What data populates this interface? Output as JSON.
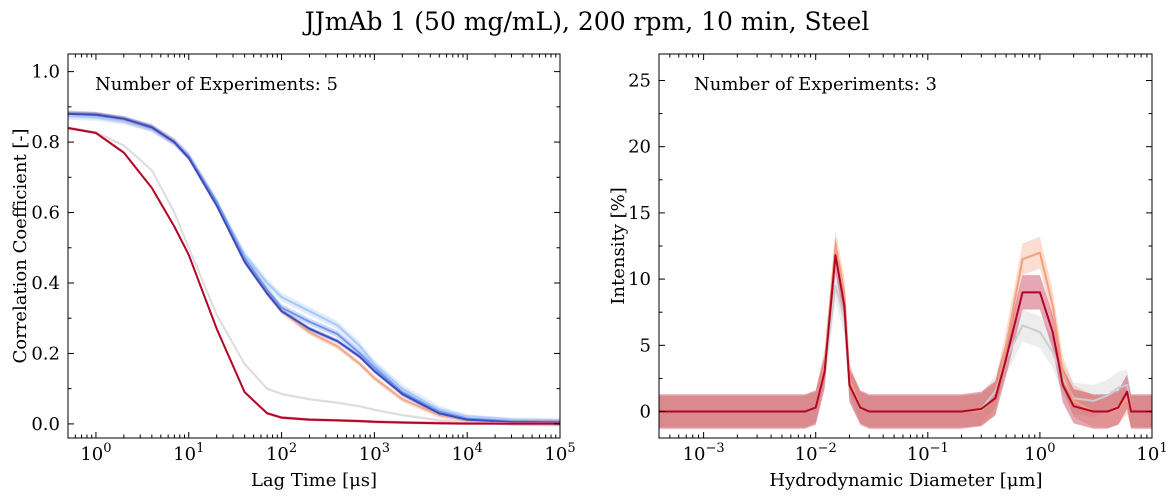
{
  "figure": {
    "title": "JJmAb 1 (50 mg/mL), 200 rpm, 10 min, Steel"
  },
  "chart_data": [
    {
      "type": "line",
      "xscale": "log",
      "xlim": [
        0.5,
        100000
      ],
      "ylim": [
        -0.04,
        1.05
      ],
      "xlabel": "Lag Time [μs]",
      "ylabel": "Correlation Coefficient [-]",
      "xticks": [
        {
          "value": 1,
          "base": "10",
          "exp": "0"
        },
        {
          "value": 10,
          "base": "10",
          "exp": "1"
        },
        {
          "value": 100,
          "base": "10",
          "exp": "2"
        },
        {
          "value": 1000,
          "base": "10",
          "exp": "3"
        },
        {
          "value": 10000,
          "base": "10",
          "exp": "4"
        },
        {
          "value": 100000,
          "base": "10",
          "exp": "5"
        }
      ],
      "yticks": [
        0.0,
        0.2,
        0.4,
        0.6,
        0.8,
        1.0
      ],
      "ytick_labels": [
        "0.0",
        "0.2",
        "0.4",
        "0.6",
        "0.8",
        "1.0"
      ],
      "annotation": "Number of Experiments: 5",
      "series": [
        {
          "color": "#a8c8f8",
          "band": 0.012,
          "x": [
            0.5,
            1,
            2,
            4,
            7,
            10,
            20,
            40,
            70,
            100,
            200,
            400,
            700,
            1000,
            2000,
            5000,
            10000,
            30000,
            100000
          ],
          "y": [
            0.875,
            0.872,
            0.862,
            0.84,
            0.8,
            0.76,
            0.63,
            0.48,
            0.4,
            0.36,
            0.32,
            0.28,
            0.22,
            0.17,
            0.1,
            0.04,
            0.015,
            0.006,
            0.004
          ]
        },
        {
          "color": "#6f96ec",
          "band": 0.01,
          "x": [
            0.5,
            1,
            2,
            4,
            7,
            10,
            20,
            40,
            70,
            100,
            200,
            400,
            700,
            1000,
            2000,
            5000,
            10000,
            30000,
            100000
          ],
          "y": [
            0.88,
            0.876,
            0.864,
            0.84,
            0.8,
            0.76,
            0.63,
            0.47,
            0.38,
            0.33,
            0.29,
            0.255,
            0.2,
            0.16,
            0.09,
            0.035,
            0.015,
            0.006,
            0.004
          ]
        },
        {
          "color": "#f0a68a",
          "band": 0.008,
          "x": [
            0.5,
            1,
            2,
            4,
            7,
            10,
            20,
            40,
            70,
            100,
            200,
            400,
            700,
            1000,
            2000,
            5000,
            10000,
            30000,
            100000
          ],
          "y": [
            0.88,
            0.878,
            0.865,
            0.842,
            0.8,
            0.755,
            0.62,
            0.46,
            0.37,
            0.32,
            0.26,
            0.22,
            0.17,
            0.13,
            0.07,
            0.025,
            0.01,
            0.004,
            0.003
          ]
        },
        {
          "color": "#3a4cc0",
          "band": 0.006,
          "x": [
            0.5,
            1,
            2,
            4,
            7,
            10,
            20,
            40,
            70,
            100,
            200,
            400,
            700,
            1000,
            2000,
            5000,
            10000,
            30000,
            100000
          ],
          "y": [
            0.88,
            0.878,
            0.866,
            0.842,
            0.8,
            0.755,
            0.62,
            0.46,
            0.37,
            0.32,
            0.27,
            0.235,
            0.19,
            0.15,
            0.085,
            0.03,
            0.012,
            0.005,
            0.004
          ]
        },
        {
          "color": "#dddde0",
          "band": 0.004,
          "x": [
            0.5,
            1,
            2,
            4,
            7,
            10,
            20,
            40,
            70,
            100,
            200,
            400,
            700,
            1000,
            2000,
            5000,
            10000,
            30000,
            100000
          ],
          "y": [
            0.84,
            0.828,
            0.79,
            0.72,
            0.6,
            0.5,
            0.31,
            0.17,
            0.1,
            0.085,
            0.07,
            0.06,
            0.05,
            0.04,
            0.025,
            0.01,
            0.004,
            0.002,
            0.002
          ]
        },
        {
          "color": "#b40426",
          "band": 0.004,
          "x": [
            0.5,
            1,
            2,
            4,
            7,
            10,
            20,
            40,
            70,
            100,
            200,
            400,
            700,
            1000,
            2000,
            5000,
            10000,
            30000,
            100000
          ],
          "y": [
            0.84,
            0.826,
            0.77,
            0.67,
            0.56,
            0.48,
            0.27,
            0.09,
            0.03,
            0.018,
            0.012,
            0.01,
            0.008,
            0.006,
            0.004,
            0.002,
            0.001,
            0.001,
            0.001
          ]
        }
      ]
    },
    {
      "type": "line",
      "xscale": "log",
      "xlim": [
        0.0004,
        10
      ],
      "ylim": [
        -2,
        27
      ],
      "xlabel": "Hydrodynamic Diameter [μm]",
      "ylabel": "Intensity [%]",
      "xticks": [
        {
          "value": 0.001,
          "base": "10",
          "exp": "−3"
        },
        {
          "value": 0.01,
          "base": "10",
          "exp": "−2"
        },
        {
          "value": 0.1,
          "base": "10",
          "exp": "−1"
        },
        {
          "value": 1,
          "base": "10",
          "exp": "0"
        },
        {
          "value": 10,
          "base": "10",
          "exp": "1"
        }
      ],
      "yticks": [
        0,
        5,
        10,
        15,
        20,
        25
      ],
      "ytick_labels": [
        "0",
        "5",
        "10",
        "15",
        "20",
        "25"
      ],
      "annotation": "Number of Experiments: 3",
      "series": [
        {
          "color": "#cccccc",
          "band": 1.2,
          "x": [
            0.0004,
            0.008,
            0.01,
            0.012,
            0.015,
            0.018,
            0.02,
            0.025,
            0.03,
            0.2,
            0.3,
            0.4,
            0.5,
            0.7,
            1,
            1.3,
            1.6,
            2,
            3,
            4,
            5,
            6,
            6.5,
            10
          ],
          "y": [
            0,
            0,
            0.3,
            3,
            9.5,
            7,
            2,
            0.3,
            0,
            0,
            0.2,
            1.5,
            4,
            6.5,
            6,
            4.5,
            2.5,
            1,
            0.8,
            1.2,
            1.8,
            2,
            0,
            0
          ]
        },
        {
          "color": "#f4a07c",
          "band": 1.2,
          "x": [
            0.0004,
            0.008,
            0.01,
            0.012,
            0.015,
            0.018,
            0.02,
            0.025,
            0.03,
            0.2,
            0.3,
            0.4,
            0.5,
            0.7,
            1,
            1.3,
            1.6,
            2,
            3,
            4,
            5,
            6,
            6.5,
            10
          ],
          "y": [
            0,
            0,
            0.3,
            3.5,
            12.5,
            9,
            2.5,
            0.3,
            0,
            0,
            0.1,
            1,
            5,
            11.5,
            12,
            8,
            3,
            0.8,
            0,
            0,
            0.2,
            1,
            0,
            0
          ]
        },
        {
          "color": "#b40426",
          "band": 1.3,
          "x": [
            0.0004,
            0.008,
            0.01,
            0.012,
            0.015,
            0.018,
            0.02,
            0.025,
            0.03,
            0.2,
            0.3,
            0.4,
            0.5,
            0.7,
            1,
            1.3,
            1.6,
            2,
            3,
            4,
            5,
            6,
            6.5,
            10
          ],
          "y": [
            0,
            0,
            0.3,
            3,
            11.8,
            8,
            2,
            0.3,
            0,
            0,
            0.2,
            1,
            4,
            9,
            9,
            6,
            2,
            0.4,
            0,
            0,
            0.3,
            1.5,
            0,
            0
          ]
        }
      ]
    }
  ]
}
